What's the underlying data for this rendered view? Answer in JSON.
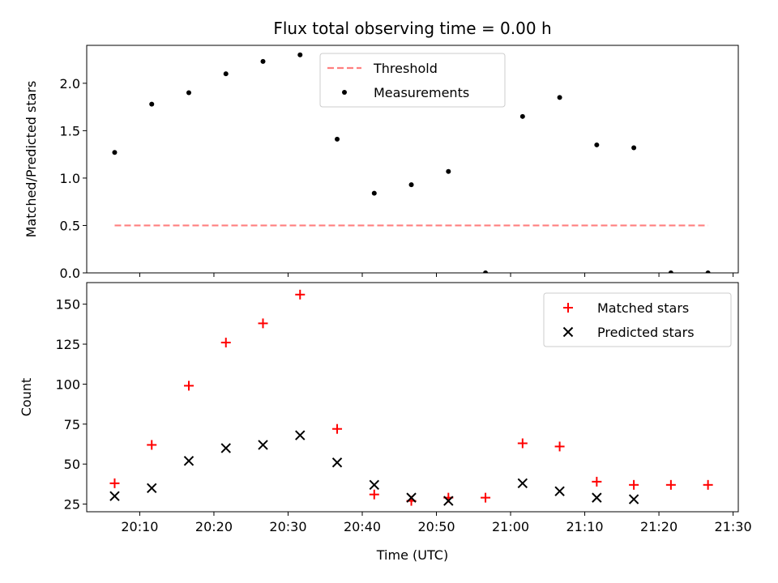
{
  "chart_data": [
    {
      "type": "scatter",
      "title": "Flux total observing time = 0.00 h",
      "xlabel": "",
      "ylabel": "Matched/Predicted stars",
      "xlim": [
        "20:02:51",
        "21:30:42"
      ],
      "ylim": [
        0,
        2.4
      ],
      "yticks": [
        "0.0",
        "0.5",
        "1.0",
        "1.5",
        "2.0"
      ],
      "legend_position": "upper-center",
      "grid": false,
      "series": [
        {
          "name": "Threshold",
          "kind": "dashed-line",
          "color": "#ff7f7f",
          "x": [
            "20:06:37",
            "21:26:37"
          ],
          "y": [
            0.5,
            0.5
          ]
        },
        {
          "name": "Measurements",
          "kind": "points",
          "color": "#000000",
          "x": [
            "20:06:37",
            "20:11:37",
            "20:16:37",
            "20:21:37",
            "20:26:37",
            "20:31:37",
            "20:36:37",
            "20:41:37",
            "20:46:37",
            "20:51:37",
            "20:56:37",
            "21:01:37",
            "21:06:37",
            "21:11:37",
            "21:16:37",
            "21:21:37",
            "21:26:37"
          ],
          "y": [
            1.27,
            1.78,
            1.9,
            2.1,
            2.23,
            2.3,
            1.41,
            0.84,
            0.93,
            1.07,
            0.0,
            1.65,
            1.85,
            1.35,
            1.32,
            0.0,
            0.0
          ]
        }
      ]
    },
    {
      "type": "scatter",
      "title": "",
      "xlabel": "Time (UTC)",
      "ylabel": "Count",
      "xlim": [
        "20:02:51",
        "21:30:42"
      ],
      "ylim": [
        20.2,
        163.5
      ],
      "xticks": [
        "20:10",
        "20:20",
        "20:30",
        "20:40",
        "20:50",
        "21:00",
        "21:10",
        "21:20",
        "21:30"
      ],
      "yticks": [
        "25",
        "50",
        "75",
        "100",
        "125",
        "150"
      ],
      "legend_position": "upper-right",
      "grid": false,
      "series": [
        {
          "name": "Matched stars",
          "marker": "plus",
          "color": "#ff0000",
          "x": [
            "20:06:37",
            "20:11:37",
            "20:16:37",
            "20:21:37",
            "20:26:37",
            "20:31:37",
            "20:36:37",
            "20:41:37",
            "20:46:37",
            "20:51:37",
            "20:56:37",
            "21:01:37",
            "21:06:37",
            "21:11:37",
            "21:16:37",
            "21:21:37",
            "21:26:37"
          ],
          "y": [
            38,
            62,
            99,
            126,
            138,
            156,
            72,
            31,
            27,
            29,
            29,
            63,
            61,
            39,
            37,
            37,
            37
          ]
        },
        {
          "name": "Predicted stars",
          "marker": "x",
          "color": "#000000",
          "x": [
            "20:06:37",
            "20:11:37",
            "20:16:37",
            "20:21:37",
            "20:26:37",
            "20:31:37",
            "20:36:37",
            "20:41:37",
            "20:46:37",
            "20:51:37",
            "21:01:37",
            "21:06:37",
            "21:11:37",
            "21:16:37"
          ],
          "y": [
            30,
            35,
            52,
            60,
            62,
            68,
            51,
            37,
            29,
            27,
            38,
            33,
            29,
            28
          ]
        }
      ]
    }
  ]
}
